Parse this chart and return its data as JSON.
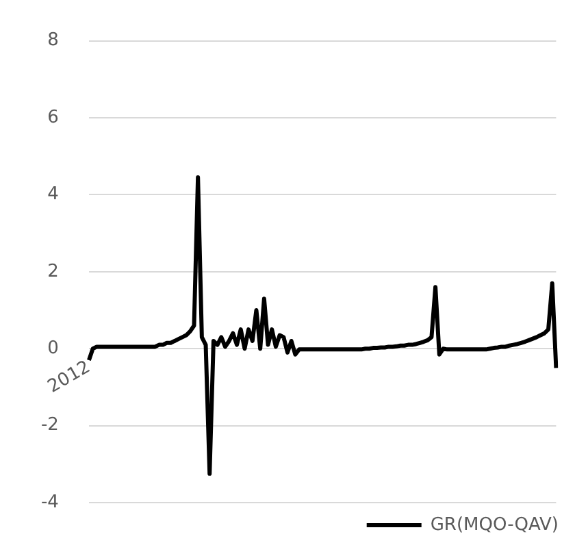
{
  "chart_data": {
    "type": "line",
    "categories": [
      "2012",
      null,
      null,
      null,
      null,
      null,
      null,
      null,
      null,
      null,
      null,
      null,
      null,
      null,
      null,
      null,
      null,
      null,
      null,
      null,
      null,
      null,
      null,
      null,
      null,
      null,
      null,
      null,
      null,
      null,
      null,
      null,
      null,
      null,
      null,
      null,
      null,
      null,
      null,
      null,
      null,
      null,
      null,
      null,
      null,
      null,
      null,
      null,
      null,
      null,
      null,
      null,
      null,
      null,
      null,
      null,
      null,
      null,
      null,
      null,
      null,
      null,
      null,
      null,
      null,
      null,
      null,
      null,
      null,
      null,
      null,
      null,
      null,
      null,
      null,
      null,
      null,
      null,
      null,
      null,
      null,
      null,
      null,
      null,
      null,
      null,
      null,
      null,
      null,
      null,
      null,
      null,
      null,
      null,
      null,
      null,
      null,
      null,
      null,
      null,
      null,
      null,
      null,
      null,
      null,
      null,
      null,
      null,
      null,
      null,
      null,
      null,
      null,
      null,
      null,
      null,
      null,
      null,
      null,
      null,
      null
    ],
    "series": [
      {
        "name": "GR(MQO-QAV)",
        "color": "#000000",
        "values": [
          -0.3,
          0,
          0.05,
          0.05,
          0.05,
          0.05,
          0.05,
          0.05,
          0.05,
          0.05,
          0.05,
          0.05,
          0.05,
          0.05,
          0.05,
          0.05,
          0.05,
          0.05,
          0.1,
          0.1,
          0.15,
          0.15,
          0.2,
          0.25,
          0.3,
          0.35,
          0.45,
          0.6,
          4.45,
          0.3,
          0.1,
          -3.25,
          0.2,
          0.1,
          0.3,
          0.05,
          0.2,
          0.4,
          0.1,
          0.5,
          0,
          0.5,
          0.2,
          1,
          0,
          1.3,
          0.1,
          0.5,
          0.05,
          0.35,
          0.3,
          -0.1,
          0.2,
          -0.15,
          -0.02,
          -0.02,
          -0.02,
          -0.02,
          -0.02,
          -0.02,
          -0.02,
          -0.02,
          -0.02,
          -0.02,
          -0.02,
          -0.02,
          -0.02,
          -0.02,
          -0.02,
          -0.02,
          -0.02,
          0,
          0,
          0.02,
          0.02,
          0.03,
          0.03,
          0.05,
          0.05,
          0.06,
          0.08,
          0.08,
          0.1,
          0.1,
          0.12,
          0.15,
          0.18,
          0.22,
          0.3,
          1.6,
          -0.15,
          0,
          -0.02,
          -0.02,
          -0.02,
          -0.02,
          -0.02,
          -0.02,
          -0.02,
          -0.02,
          -0.02,
          -0.02,
          -0.02,
          0,
          0.02,
          0.03,
          0.05,
          0.05,
          0.08,
          0.1,
          0.12,
          0.15,
          0.18,
          0.22,
          0.26,
          0.3,
          0.35,
          0.4,
          0.5,
          1.7,
          -0.5
        ]
      }
    ],
    "ylim": [
      -4,
      8
    ],
    "yticks": [
      -4,
      -2,
      0,
      2,
      4,
      6,
      8
    ],
    "grid": "y",
    "legend": "bottom right",
    "marker": "none",
    "line_style": "solid"
  }
}
